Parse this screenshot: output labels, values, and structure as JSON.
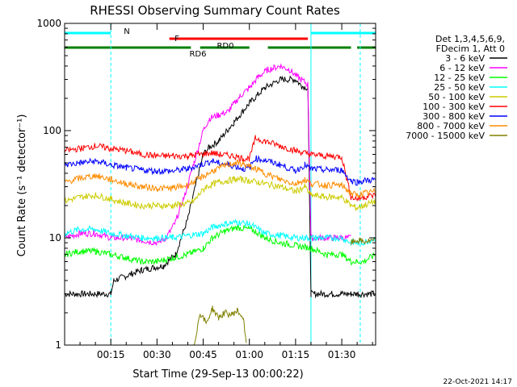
{
  "chart_data": {
    "type": "line",
    "title": "RHESSI Observing Summary Count Rates",
    "xlabel": "Start Time (29-Sep-13 00:00:22)",
    "ylabel": "Count Rate (s⁻¹ detector⁻¹)",
    "y_scale": "log",
    "ylim": [
      1,
      1000
    ],
    "xlim_minutes": [
      0,
      101
    ],
    "x_ticks": [
      {
        "t": 15,
        "label": "00:15"
      },
      {
        "t": 30,
        "label": "00:30"
      },
      {
        "t": 45,
        "label": "00:45"
      },
      {
        "t": 60,
        "label": "01:00"
      },
      {
        "t": 75,
        "label": "01:15"
      },
      {
        "t": 90,
        "label": "01:30"
      }
    ],
    "y_ticks": [
      {
        "v": 1,
        "label": "1"
      },
      {
        "v": 10,
        "label": "10"
      },
      {
        "v": 100,
        "label": "100"
      },
      {
        "v": 1000,
        "label": "1000"
      }
    ],
    "legend_header": [
      "Det 1,3,4,5,6,9,",
      "FDecim 1, Att 0"
    ],
    "legend_position": "right",
    "series": [
      {
        "name": "3 - 6 keV",
        "color": "#000000",
        "points": [
          [
            0,
            3.0
          ],
          [
            15,
            3.0
          ],
          [
            16,
            4
          ],
          [
            25,
            5
          ],
          [
            32,
            5.5
          ],
          [
            36,
            7
          ],
          [
            40,
            15
          ],
          [
            43,
            35
          ],
          [
            45,
            60
          ],
          [
            47,
            70
          ],
          [
            50,
            80
          ],
          [
            55,
            120
          ],
          [
            60,
            180
          ],
          [
            65,
            250
          ],
          [
            70,
            300
          ],
          [
            75,
            300
          ],
          [
            77,
            260
          ],
          [
            79,
            250
          ],
          [
            80,
            3.0
          ],
          [
            90,
            3.0
          ],
          [
            93,
            3.0
          ],
          [
            95,
            3.0
          ],
          [
            101,
            3.0
          ]
        ]
      },
      {
        "name": "6 - 12 keV",
        "color": "#ff00ff",
        "points": [
          [
            0,
            10
          ],
          [
            5,
            11
          ],
          [
            10,
            11
          ],
          [
            15,
            10
          ],
          [
            20,
            10
          ],
          [
            25,
            9.5
          ],
          [
            30,
            9
          ],
          [
            33,
            10
          ],
          [
            36,
            14
          ],
          [
            39,
            25
          ],
          [
            42,
            50
          ],
          [
            45,
            100
          ],
          [
            47,
            130
          ],
          [
            50,
            140
          ],
          [
            53,
            150
          ],
          [
            57,
            210
          ],
          [
            60,
            250
          ],
          [
            63,
            320
          ],
          [
            66,
            370
          ],
          [
            70,
            400
          ],
          [
            73,
            370
          ],
          [
            76,
            310
          ],
          [
            79,
            270
          ],
          [
            80,
            10
          ],
          [
            90,
            10
          ],
          [
            93,
            10
          ]
        ]
      },
      {
        "name": "12 - 25 keV",
        "color": "#00ff00",
        "points": [
          [
            0,
            7
          ],
          [
            5,
            7.5
          ],
          [
            10,
            7.5
          ],
          [
            15,
            7
          ],
          [
            20,
            6.5
          ],
          [
            25,
            6
          ],
          [
            30,
            6
          ],
          [
            35,
            6.5
          ],
          [
            40,
            7
          ],
          [
            45,
            8
          ],
          [
            48,
            10
          ],
          [
            52,
            11.5
          ],
          [
            56,
            12.5
          ],
          [
            60,
            12
          ],
          [
            62,
            11.5
          ],
          [
            65,
            10
          ],
          [
            70,
            9
          ],
          [
            75,
            8.5
          ],
          [
            80,
            8
          ],
          [
            85,
            7
          ],
          [
            90,
            7
          ],
          [
            93,
            6
          ],
          [
            95,
            6
          ],
          [
            97,
            6
          ],
          [
            101,
            7
          ]
        ]
      },
      {
        "name": "25 - 50 keV",
        "color": "#00ffff",
        "points": [
          [
            0,
            11
          ],
          [
            5,
            12
          ],
          [
            10,
            12
          ],
          [
            15,
            11
          ],
          [
            20,
            10.5
          ],
          [
            25,
            10
          ],
          [
            30,
            10
          ],
          [
            35,
            10
          ],
          [
            40,
            10.5
          ],
          [
            45,
            11
          ],
          [
            48,
            12.5
          ],
          [
            52,
            13.5
          ],
          [
            56,
            14
          ],
          [
            60,
            13.5
          ],
          [
            62,
            12.5
          ],
          [
            65,
            11
          ],
          [
            70,
            10.5
          ],
          [
            75,
            10
          ],
          [
            78,
            10
          ],
          [
            80,
            10
          ],
          [
            85,
            10
          ],
          [
            90,
            10
          ],
          [
            93,
            9
          ],
          [
            95,
            9
          ],
          [
            97,
            9
          ],
          [
            101,
            10
          ]
        ]
      },
      {
        "name": "50 - 100 keV",
        "color": "#cccc00",
        "points": [
          [
            0,
            22
          ],
          [
            5,
            24
          ],
          [
            10,
            25
          ],
          [
            15,
            23
          ],
          [
            20,
            21
          ],
          [
            25,
            20
          ],
          [
            30,
            20
          ],
          [
            35,
            20
          ],
          [
            40,
            21
          ],
          [
            42,
            22
          ],
          [
            44,
            26
          ],
          [
            46,
            30
          ],
          [
            50,
            33
          ],
          [
            55,
            35
          ],
          [
            58,
            35
          ],
          [
            60,
            34
          ],
          [
            63,
            33
          ],
          [
            65,
            32
          ],
          [
            70,
            30
          ],
          [
            75,
            27
          ],
          [
            78,
            30
          ],
          [
            80,
            25
          ],
          [
            85,
            24
          ],
          [
            90,
            24
          ],
          [
            93,
            20
          ],
          [
            95,
            19
          ],
          [
            97,
            20
          ],
          [
            101,
            22
          ]
        ]
      },
      {
        "name": "100 - 300 keV",
        "color": "#ff0000",
        "points": [
          [
            0,
            65
          ],
          [
            5,
            68
          ],
          [
            10,
            72
          ],
          [
            15,
            68
          ],
          [
            20,
            65
          ],
          [
            25,
            60
          ],
          [
            30,
            58
          ],
          [
            35,
            58
          ],
          [
            40,
            58
          ],
          [
            44,
            60
          ],
          [
            48,
            62
          ],
          [
            50,
            60
          ],
          [
            55,
            58
          ],
          [
            58,
            55
          ],
          [
            60,
            55
          ],
          [
            62,
            85
          ],
          [
            65,
            80
          ],
          [
            70,
            72
          ],
          [
            75,
            65
          ],
          [
            78,
            62
          ],
          [
            80,
            60
          ],
          [
            85,
            58
          ],
          [
            90,
            57
          ],
          [
            93,
            24
          ],
          [
            95,
            23
          ],
          [
            97,
            24
          ],
          [
            101,
            25
          ]
        ]
      },
      {
        "name": "300 - 800 keV",
        "color": "#0000ff",
        "points": [
          [
            0,
            48
          ],
          [
            5,
            50
          ],
          [
            10,
            52
          ],
          [
            15,
            48
          ],
          [
            20,
            45
          ],
          [
            25,
            43
          ],
          [
            30,
            42
          ],
          [
            35,
            42
          ],
          [
            40,
            44
          ],
          [
            44,
            48
          ],
          [
            48,
            52
          ],
          [
            50,
            50
          ],
          [
            55,
            47
          ],
          [
            58,
            44
          ],
          [
            60,
            45
          ],
          [
            62,
            55
          ],
          [
            65,
            53
          ],
          [
            70,
            48
          ],
          [
            75,
            42
          ],
          [
            78,
            48
          ],
          [
            80,
            44
          ],
          [
            85,
            43
          ],
          [
            90,
            43
          ],
          [
            93,
            34
          ],
          [
            95,
            33
          ],
          [
            97,
            34
          ],
          [
            101,
            35
          ]
        ]
      },
      {
        "name": "800 - 7000 keV",
        "color": "#ff8c00",
        "points": [
          [
            0,
            33
          ],
          [
            5,
            36
          ],
          [
            10,
            38
          ],
          [
            15,
            35
          ],
          [
            20,
            32
          ],
          [
            25,
            30
          ],
          [
            30,
            29
          ],
          [
            35,
            29
          ],
          [
            40,
            31
          ],
          [
            44,
            36
          ],
          [
            48,
            42
          ],
          [
            52,
            47
          ],
          [
            55,
            50
          ],
          [
            58,
            49
          ],
          [
            60,
            46
          ],
          [
            62,
            44
          ],
          [
            65,
            40
          ],
          [
            70,
            35
          ],
          [
            75,
            32
          ],
          [
            78,
            35
          ],
          [
            80,
            32
          ],
          [
            85,
            31
          ],
          [
            90,
            31
          ],
          [
            93,
            26
          ],
          [
            95,
            25
          ],
          [
            97,
            26
          ],
          [
            101,
            27
          ]
        ]
      },
      {
        "name": "7000 - 15000 keV",
        "color": "#808000",
        "points": [
          [
            0,
            null
          ],
          [
            41,
            null
          ],
          [
            42,
            1.0
          ],
          [
            44,
            2.0
          ],
          [
            46,
            1.6
          ],
          [
            48,
            2.2
          ],
          [
            50,
            1.8
          ],
          [
            52,
            2.0
          ],
          [
            54,
            1.9
          ],
          [
            56,
            2.1
          ],
          [
            58,
            1.8
          ],
          [
            59,
            1.0
          ],
          [
            60,
            null
          ],
          [
            93,
            9
          ],
          [
            95,
            9.5
          ],
          [
            97,
            9.2
          ],
          [
            101,
            9.4
          ]
        ]
      }
    ],
    "annotations": [
      {
        "label": "N",
        "color": "#00ffff",
        "segments": [
          [
            0,
            15
          ],
          [
            80,
            101
          ]
        ],
        "level": 1
      },
      {
        "label": "F",
        "color": "#ff0000",
        "segments": [
          [
            34,
            79
          ]
        ],
        "level": 2
      },
      {
        "label": "RD0",
        "color": "#008000",
        "segments": [
          [
            0,
            41
          ],
          [
            44,
            60
          ],
          [
            66,
            93
          ],
          [
            95,
            101
          ]
        ],
        "level": 3
      },
      {
        "label": "RD6",
        "color": "#008000",
        "segments": [
          [],
          []
        ],
        "level": 3
      }
    ],
    "vertical_lines": [
      {
        "t": 0,
        "color": "#00ffff",
        "style": "solid"
      },
      {
        "t": 15,
        "color": "#00ffff",
        "style": "dashed"
      },
      {
        "t": 80,
        "color": "#00ffff",
        "style": "solid"
      },
      {
        "t": 96,
        "color": "#00ffff",
        "style": "dashed"
      }
    ],
    "grid": false
  },
  "footer": {
    "timestamp": "22-Oct-2021 14:17"
  }
}
